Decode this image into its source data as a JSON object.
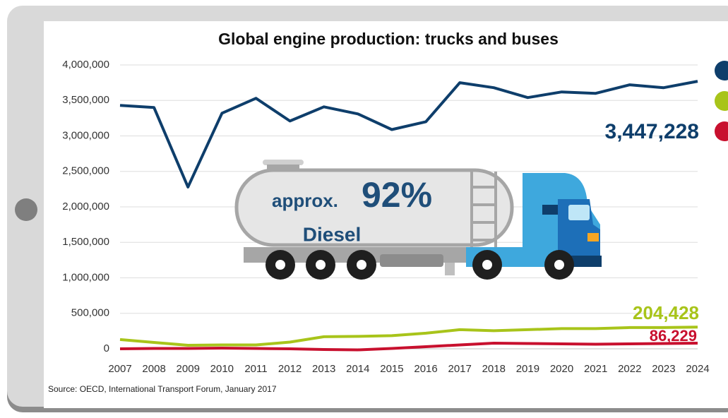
{
  "chart_data": {
    "type": "line",
    "title": "Global engine production: trucks and buses",
    "source": "Source: OECD, International Transport Forum, January 2017",
    "categories": [
      "2007",
      "2008",
      "2009",
      "2010",
      "2011",
      "2012",
      "2013",
      "2014",
      "2015",
      "2016",
      "2017",
      "2018",
      "2019",
      "2020",
      "2021",
      "2022",
      "2023",
      "2024"
    ],
    "series": [
      {
        "color": "#0e3e6b",
        "values": [
          3430000,
          3400000,
          2280000,
          3320000,
          3530000,
          3210000,
          3410000,
          3310000,
          3090000,
          3200000,
          3750000,
          3680000,
          3540000,
          3620000,
          3600000,
          3720000,
          3680000,
          3770000
        ]
      },
      {
        "color": "#a8c41a",
        "values": [
          130000,
          90000,
          50000,
          55000,
          55000,
          95000,
          170000,
          175000,
          185000,
          220000,
          270000,
          255000,
          270000,
          285000,
          285000,
          300000,
          300000,
          305000
        ]
      },
      {
        "color": "#c8102e",
        "values": [
          0,
          5000,
          5000,
          10000,
          5000,
          0,
          -10000,
          -15000,
          5000,
          30000,
          55000,
          80000,
          75000,
          70000,
          65000,
          70000,
          75000,
          80000
        ]
      }
    ],
    "ylim": [
      0,
      4000000
    ],
    "yticks": [
      0,
      {
        "value": 500000,
        "label": "500,000"
      },
      {
        "value": 1000000,
        "label": "1,000,000"
      },
      {
        "value": 1500000,
        "label": "1,500,000"
      },
      {
        "value": 2000000,
        "label": "2,000,000"
      },
      {
        "value": 2500000,
        "label": "2,500,000"
      },
      {
        "value": 3000000,
        "label": "3,000,000"
      },
      {
        "value": 3500000,
        "label": "3,500,000"
      },
      {
        "value": 4000000,
        "label": "4,000,000"
      }
    ],
    "grid": true,
    "annotations": [
      "3,447,228",
      "204,428",
      "86,229"
    ],
    "illustration": {
      "prefix": "approx.",
      "share": "92%",
      "fuel": "Diesel"
    }
  }
}
